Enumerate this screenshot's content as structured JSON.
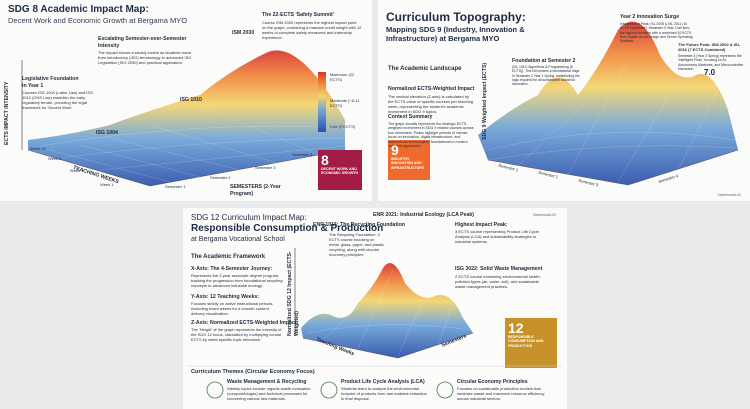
{
  "panels": [
    {
      "title": "SDG 8 Academic Impact Map:",
      "subtitle": "Decent Work and Economic Growth at Bergama MYO",
      "callouts": [
        {
          "heading": "Escalating Semester-over-Semester Intensity",
          "text": "The impact shows a steady incline as students move from introductory (ISG) terminology to advanced ISG Legislation (ISG 2030) and practical application."
        },
        {
          "heading": "Legislative Foundation in Year 1",
          "text": "Courses ISG 1004 (Labor Law) and ISG 1010 (OHS Law) establish the early regulatory terrain, providing the legal framework for 'Decent Work'."
        },
        {
          "heading": "The 22-ECTS 'Safety Summit'",
          "text": "Course ISM 2030 represents the highest impact point on the graph, combining a massive credit weight with 12 weeks of complete safety measures and internship experience."
        }
      ],
      "points": [
        "ISM 2030",
        "ISG 1010",
        "ISG 1004"
      ],
      "legend": [
        "Maximum (22 ECTS)",
        "Moderate (~8-11 ECTS)",
        "Low (2 ECTS)"
      ],
      "z_axis": "ECTS IMPACT INTENSITY",
      "y_axis": "TEACHING WEEKS",
      "x_axis": "SEMESTERS (2-Year Program)",
      "weeks": [
        "Week 12",
        "Week 8",
        "Week 4",
        "Week 1"
      ],
      "semesters": [
        "Semester 1",
        "Semester 2",
        "Semester 3",
        "Semester 4"
      ],
      "badge": {
        "number": "8",
        "label": "DECENT WORK AND ECONOMIC GROWTH"
      }
    },
    {
      "title": "Curriculum Topography:",
      "subtitle": "Mapping SDG 9 (Industry, Innovation & Infrastructure) at Bergama MYO",
      "section": "The Academic Landscape",
      "blocks": [
        {
          "heading": "Normalized ECTS-Weighted Impact",
          "text": "The vertical elevation (Z-axis) is calculated by the ECTS value of specific courses per teaching week, representing the student's academic investment in SDG 9 topics."
        },
        {
          "heading": "Context Summary",
          "text": "The graph visually represents the strategic ECTS-weighted investment in SDG 9 related courses across four semesters. Peaks highlight periods of intense focus on innovation, digital infrastructure, and autonomous technologies, foundational to modern industrial application."
        }
      ],
      "callouts": [
        {
          "heading": "Year 2 Innovation Surge",
          "text": "Infrastructure Peak: ISL 2005 & ISL 2011 (10 ECTS Combined). Semester 3 Year 2 fall term, the highest elevation with a combined 10 ECTS from Digital Circuit Design and Server Operating Systems."
        },
        {
          "heading": "Foundation at Semester 2",
          "text": "(ISL 1014: Algorithms & Programming (6 ECTS)). This hill creates a foundational ridge in Semester 2 Year 1 Spring, establishing the logic required for all subsequent industrial innovation."
        },
        {
          "heading": "The Future Peak: ISM 2002 & ISL 2016 (7 ECTS Combined)",
          "text": "Semester 4 (Year 2 Spring) represents the 'Intelligent Peak,' focusing on AI, Autonomous Machines, and Microcontroller Hardware."
        }
      ],
      "peak_value": "7.0",
      "z_axis": "SDG 9 Weighted Impact (ECTS)",
      "semesters": [
        "Semester 1",
        "Semester 2",
        "Semester 3",
        "Semester 4"
      ],
      "badge": {
        "number": "9",
        "label": "INDUSTRY, INNOVATION AND INFRASTRUCTURE"
      },
      "credit": "NotebookLM"
    },
    {
      "title": "SDG 12 Curriculum Impact Map:",
      "subtitle": "Responsible Consumption & Production",
      "subtitle2": "at Bergama Vocational School",
      "section": "The Academic Framework",
      "blocks": [
        {
          "heading": "X-Axis: The 4-Semester Journey:",
          "text": "Represents the 2-year associate degree program, tracking the progression from foundational recycling concepts to advanced industrial ecology."
        },
        {
          "heading": "Y-Axis: 12 Teaching Weeks:",
          "text": "Focuses strictly on active instructional periods, excluding exam weeks for a smooth content delivery visualization."
        },
        {
          "heading": "Z-Axis: Normalized ECTS-Weighted Impact:",
          "text": "The 'Height' of the graph represents the intensity of the SDG 12 focus, calculated by multiplying course ECTS by week-specific topic relevance."
        }
      ],
      "callouts": [
        {
          "heading": "ENR 1016: The Recycling Foundation",
          "text": "The Recycling Foundation: 2 ECTS course focusing on metal, glass, paper, and plastic recycling, along with circular economy principles."
        },
        {
          "heading": "ENR 2021: Industrial Ecology (LCA Peak)",
          "text": ""
        },
        {
          "heading": "Highest Impact Peak:",
          "text": "3 ECTS course representing Product Life Cycle Analysis (LCA) and sustainability strategies in industrial systems."
        },
        {
          "heading": "ISG 3022: Solid Waste Management",
          "text": "2 ECTS course examining environmental health, pollution types (air, water, soil), and sustainable waste management practices."
        }
      ],
      "z_axis": "Normalized SDG 12 Impact (ECTS-Weighted)",
      "y_axis": "Teaching Weeks",
      "x_axis": "Semesters",
      "themes_title": "Curriculum Themes (Circular Economy Focus)",
      "themes": [
        {
          "heading": "Waste Management & Recycling",
          "text": "Weekly topics include organic waste evaluation (compost/biogas) and technical processes for recovering various raw materials."
        },
        {
          "heading": "Product Life Cycle Analysis (LCA)",
          "text": "Students learn to analyze the environmental footprint of products from raw material extraction to final disposal."
        },
        {
          "heading": "Circular Economy Principles",
          "text": "Focuses on sustainable production models that minimize waste and maximize resource efficiency across industrial sectors."
        }
      ],
      "badge": {
        "number": "12",
        "label": "RESPONSIBLE CONSUMPTION AND PRODUCTION"
      },
      "credit": "NotebookLM"
    }
  ]
}
